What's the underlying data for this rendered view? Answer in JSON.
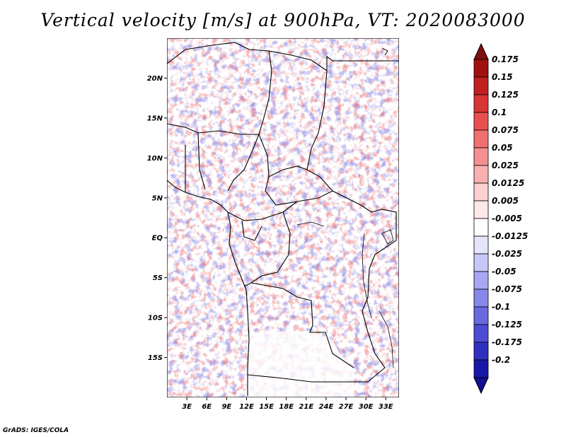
{
  "title": "Vertical velocity [m/s] at 900hPa, VT: 2020083000",
  "credit": "GrADS: IGES/COLA",
  "map": {
    "lon_range": [
      0,
      35
    ],
    "lat_range": [
      -20,
      25
    ],
    "lat_ticks": [
      {
        "value": 20,
        "label": "20N"
      },
      {
        "value": 15,
        "label": "15N"
      },
      {
        "value": 10,
        "label": "10N"
      },
      {
        "value": 5,
        "label": "5N"
      },
      {
        "value": 0,
        "label": "EQ"
      },
      {
        "value": -5,
        "label": "5S"
      },
      {
        "value": -10,
        "label": "10S"
      },
      {
        "value": -15,
        "label": "15S"
      }
    ],
    "lon_ticks": [
      {
        "value": 3,
        "label": "3E"
      },
      {
        "value": 6,
        "label": "6E"
      },
      {
        "value": 9,
        "label": "9E"
      },
      {
        "value": 12,
        "label": "12E"
      },
      {
        "value": 15,
        "label": "15E"
      },
      {
        "value": 18,
        "label": "18E"
      },
      {
        "value": 21,
        "label": "21E"
      },
      {
        "value": 24,
        "label": "24E"
      },
      {
        "value": 27,
        "label": "27E"
      },
      {
        "value": 30,
        "label": "30E"
      },
      {
        "value": 33,
        "label": "33E"
      }
    ]
  },
  "colorbar": {
    "levels": [
      {
        "label": "0.175",
        "color": "#a01010"
      },
      {
        "label": "0.15",
        "color": "#c02020"
      },
      {
        "label": "0.125",
        "color": "#d83535"
      },
      {
        "label": "0.1",
        "color": "#e85050"
      },
      {
        "label": "0.075",
        "color": "#f07070"
      },
      {
        "label": "0.05",
        "color": "#f59090"
      },
      {
        "label": "0.025",
        "color": "#f9b0b0"
      },
      {
        "label": "0.0125",
        "color": "#fcd0d0"
      },
      {
        "label": "0.005",
        "color": "#fee8e8"
      },
      {
        "label": "-0.005",
        "color": "#ffffff"
      },
      {
        "label": "-0.0125",
        "color": "#e4e4fc"
      },
      {
        "label": "-0.025",
        "color": "#c8c8f8"
      },
      {
        "label": "-0.05",
        "color": "#a8a8f2"
      },
      {
        "label": "-0.075",
        "color": "#8888ea"
      },
      {
        "label": "-0.1",
        "color": "#6a6ae0"
      },
      {
        "label": "-0.125",
        "color": "#4c4cd4"
      },
      {
        "label": "-0.175",
        "color": "#3030c0"
      },
      {
        "label": "-0.2",
        "color": "#1818a8"
      }
    ],
    "top_arrow_color": "#801010",
    "bottom_arrow_color": "#101090"
  }
}
